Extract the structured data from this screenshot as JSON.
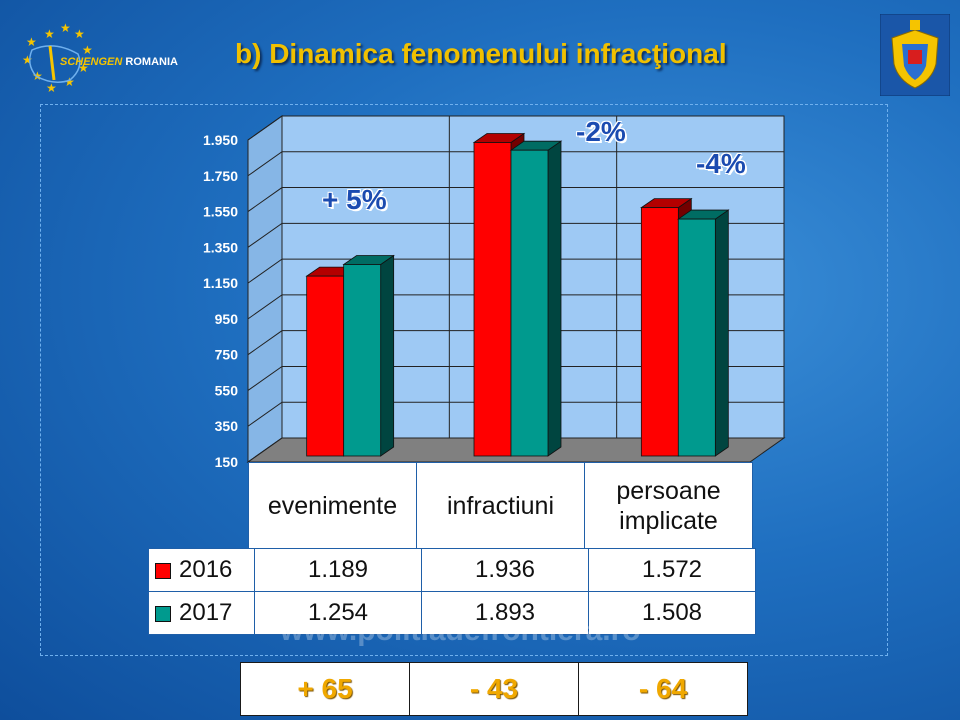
{
  "header": {
    "logo_text_1": "SCHENGEN",
    "logo_text_2": "ROMANIA",
    "title": "b) Dinamica fenomenului infracţional"
  },
  "chart_data": {
    "type": "bar",
    "categories": [
      "evenimente",
      "infractiuni",
      "persoane implicate"
    ],
    "category_lines": [
      [
        "evenimente"
      ],
      [
        "infractiuni"
      ],
      [
        "persoane",
        "implicate"
      ]
    ],
    "series": [
      {
        "name": "2016",
        "values": [
          1189,
          1936,
          1572
        ],
        "labels": [
          "1.189",
          "1.936",
          "1.572"
        ],
        "color": "#ff0000"
      },
      {
        "name": "2017",
        "values": [
          1254,
          1893,
          1508
        ],
        "labels": [
          "1.254",
          "1.893",
          "1.508"
        ],
        "color": "#009a8e"
      }
    ],
    "yticks": [
      "150",
      "350",
      "550",
      "750",
      "950",
      "1.150",
      "1.350",
      "1.550",
      "1.750",
      "1.950"
    ],
    "ylim": [
      150,
      1950
    ],
    "grid": true,
    "annotations": [
      "+ 5%",
      "-2%",
      "-4%"
    ]
  },
  "watermark": "www.politiadefrontiera.ro",
  "differences": [
    "+ 65",
    "- 43",
    "- 64"
  ]
}
